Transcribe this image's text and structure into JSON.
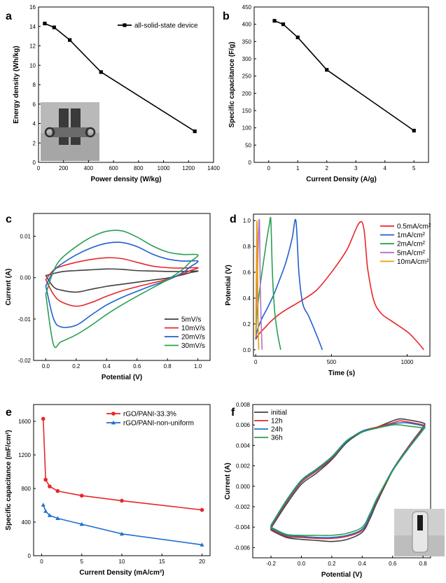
{
  "chart_data": [
    {
      "id": "a",
      "panel_label": "a",
      "type": "line",
      "xlabel": "Power density (W/kg)",
      "ylabel": "Energy density (Wh/kg)",
      "xlim": [
        0,
        1400
      ],
      "ylim": [
        0,
        16
      ],
      "xticks": [
        0,
        200,
        400,
        600,
        800,
        1000,
        1200,
        1400
      ],
      "yticks": [
        0,
        2,
        4,
        6,
        8,
        10,
        12,
        14,
        16
      ],
      "legend_position": "top-right",
      "inset": "photo of all-solid-state device",
      "series": [
        {
          "name": "all-solid-state device",
          "color": "#000000",
          "marker": "square",
          "x": [
            50,
            125,
            250,
            500,
            1250
          ],
          "y": [
            14.3,
            13.9,
            12.6,
            9.3,
            3.2
          ]
        }
      ]
    },
    {
      "id": "b",
      "panel_label": "b",
      "type": "line",
      "xlabel": "Current Density (A/g)",
      "ylabel": "Specific capacitance (F/g)",
      "xlim": [
        -0.5,
        5.5
      ],
      "ylim": [
        0,
        450
      ],
      "xticks": [
        0,
        1,
        2,
        3,
        4,
        5
      ],
      "yticks": [
        0,
        50,
        100,
        150,
        200,
        250,
        300,
        350,
        400,
        450
      ],
      "series": [
        {
          "name": "",
          "color": "#000000",
          "marker": "square",
          "x": [
            0.2,
            0.5,
            1,
            2,
            5
          ],
          "y": [
            410,
            400,
            362,
            268,
            92
          ]
        }
      ]
    },
    {
      "id": "c",
      "panel_label": "c",
      "type": "line",
      "curve": "cv",
      "xlabel": "Potential (V)",
      "ylabel": "Current (A)",
      "xlim": [
        -0.08,
        1.08
      ],
      "ylim": [
        -0.02,
        0.0155
      ],
      "xticks": [
        0.0,
        0.2,
        0.4,
        0.6,
        0.8,
        1.0
      ],
      "yticks": [
        -0.02,
        -0.01,
        0.0,
        0.01
      ],
      "legend_position": "bottom-right",
      "series": [
        {
          "name": "5mV/s",
          "color": "#404040",
          "x": [
            0.0,
            0.1,
            0.2,
            0.3,
            0.4,
            0.5,
            0.6,
            0.7,
            0.8,
            0.9,
            1.0,
            0.95,
            0.9,
            0.8,
            0.7,
            0.6,
            0.5,
            0.4,
            0.3,
            0.2,
            0.1,
            0.05,
            0.0
          ],
          "y": [
            0.0005,
            0.0014,
            0.0017,
            0.0019,
            0.0021,
            0.002,
            0.0017,
            0.0016,
            0.0015,
            0.0015,
            0.0016,
            0.0012,
            0.0007,
            -0.0001,
            -0.0006,
            -0.0011,
            -0.0016,
            -0.0021,
            -0.0028,
            -0.0035,
            -0.003,
            -0.0022,
            0.0005
          ]
        },
        {
          "name": "10mV/s",
          "color": "#e8262a",
          "x": [
            0.0,
            0.05,
            0.1,
            0.2,
            0.3,
            0.4,
            0.5,
            0.6,
            0.7,
            0.8,
            0.9,
            1.0,
            0.95,
            0.9,
            0.8,
            0.7,
            0.6,
            0.5,
            0.4,
            0.3,
            0.2,
            0.1,
            0.05,
            0.0
          ],
          "y": [
            -0.0005,
            0.0018,
            0.0027,
            0.0037,
            0.0044,
            0.0048,
            0.0046,
            0.0037,
            0.0028,
            0.0024,
            0.0023,
            0.0024,
            0.0017,
            0.0009,
            -0.0004,
            -0.0013,
            -0.0022,
            -0.0032,
            -0.0045,
            -0.006,
            -0.0069,
            -0.0058,
            -0.004,
            -0.0005
          ]
        },
        {
          "name": "20mV/s",
          "color": "#1f5fd0",
          "x": [
            0.0,
            0.05,
            0.1,
            0.2,
            0.3,
            0.4,
            0.5,
            0.6,
            0.7,
            0.8,
            0.9,
            1.0,
            0.95,
            0.9,
            0.8,
            0.7,
            0.6,
            0.5,
            0.4,
            0.3,
            0.2,
            0.1,
            0.05,
            0.0
          ],
          "y": [
            -0.002,
            0.0015,
            0.0032,
            0.0055,
            0.0072,
            0.0083,
            0.0085,
            0.0075,
            0.0057,
            0.0045,
            0.004,
            0.004,
            0.0026,
            0.0012,
            -0.0006,
            -0.0019,
            -0.0033,
            -0.0048,
            -0.0066,
            -0.009,
            -0.0115,
            -0.0119,
            -0.0098,
            -0.002
          ]
        },
        {
          "name": "30mV/s",
          "color": "#2aa050",
          "x": [
            0.0,
            0.05,
            0.1,
            0.2,
            0.3,
            0.4,
            0.5,
            0.6,
            0.7,
            0.8,
            0.9,
            1.0,
            0.95,
            0.9,
            0.8,
            0.7,
            0.6,
            0.5,
            0.4,
            0.3,
            0.2,
            0.1,
            0.05,
            0.0
          ],
          "y": [
            -0.004,
            0.0015,
            0.0045,
            0.0075,
            0.0098,
            0.0112,
            0.0113,
            0.0098,
            0.0077,
            0.0062,
            0.0056,
            0.0055,
            0.0038,
            0.002,
            -0.0005,
            -0.0025,
            -0.0045,
            -0.0066,
            -0.0089,
            -0.0115,
            -0.0138,
            -0.0155,
            -0.0161,
            -0.004
          ]
        }
      ]
    },
    {
      "id": "d",
      "panel_label": "d",
      "type": "line",
      "xlabel": "Time (s)",
      "ylabel": "Potential (V)",
      "xlim": [
        -15,
        1150
      ],
      "ylim": [
        -0.05,
        1.05
      ],
      "xticks": [
        0,
        500,
        1000
      ],
      "yticks": [
        0.0,
        0.2,
        0.4,
        0.6,
        0.8,
        1.0
      ],
      "legend_position": "top-right",
      "series": [
        {
          "name": "0.5mA/cm²",
          "color": "#e8262a",
          "x": [
            0,
            20,
            60,
            100,
            150,
            200,
            300,
            400,
            500,
            600,
            700,
            740,
            780,
            830,
            900,
            1000,
            1060,
            1110
          ],
          "y": [
            0.08,
            0.12,
            0.17,
            0.22,
            0.27,
            0.31,
            0.38,
            0.46,
            0.6,
            0.77,
            0.99,
            0.62,
            0.38,
            0.28,
            0.22,
            0.14,
            0.07,
            0.0
          ]
        },
        {
          "name": "1mA/cm²",
          "color": "#1f5fd0",
          "x": [
            0,
            10,
            40,
            80,
            120,
            160,
            200,
            240,
            265,
            285,
            310,
            350,
            400,
            440
          ],
          "y": [
            0.08,
            0.15,
            0.24,
            0.33,
            0.43,
            0.55,
            0.68,
            0.86,
            1.0,
            0.6,
            0.36,
            0.26,
            0.12,
            0.0
          ]
        },
        {
          "name": "2mA/cm²",
          "color": "#2aa050",
          "x": [
            0,
            10,
            30,
            50,
            70,
            90,
            100,
            110,
            125,
            145,
            165
          ],
          "y": [
            0.1,
            0.3,
            0.5,
            0.67,
            0.83,
            0.97,
            1.0,
            0.6,
            0.3,
            0.12,
            0.0
          ]
        },
        {
          "name": "5mA/cm²",
          "color": "#b36fd0",
          "x": [
            0,
            8,
            16,
            24,
            30,
            36,
            42
          ],
          "y": [
            0.1,
            0.45,
            0.8,
            1.0,
            0.5,
            0.2,
            0.0
          ]
        },
        {
          "name": "10mA/cm²",
          "color": "#e8a000",
          "x": [
            0,
            4,
            8,
            12,
            16,
            20
          ],
          "y": [
            0.1,
            0.6,
            1.0,
            0.6,
            0.2,
            0.0
          ]
        }
      ]
    },
    {
      "id": "e",
      "panel_label": "e",
      "type": "line",
      "xlabel": "Current Density (mA/cm²)",
      "ylabel": "Specific capacitance (mF/cm²)",
      "xlim": [
        -1,
        21
      ],
      "ylim": [
        0,
        1800
      ],
      "xticks": [
        0,
        5,
        10,
        15,
        20
      ],
      "yticks": [
        0,
        400,
        800,
        1200,
        1600
      ],
      "legend_position": "top-right",
      "series": [
        {
          "name": "rGO/PANI-33.3%",
          "color": "#e8262a",
          "marker": "circle",
          "x": [
            0.2,
            0.5,
            1,
            2,
            5,
            10,
            20
          ],
          "y": [
            1630,
            905,
            825,
            770,
            715,
            655,
            545
          ]
        },
        {
          "name": "rGO/PANI-non-uniform",
          "color": "#1f6fd0",
          "marker": "triangle",
          "x": [
            0.2,
            0.5,
            1,
            2,
            5,
            10,
            20
          ],
          "y": [
            605,
            530,
            480,
            445,
            375,
            260,
            130
          ]
        }
      ]
    },
    {
      "id": "f",
      "panel_label": "f",
      "type": "line",
      "curve": "cv",
      "xlabel": "Potential (V)",
      "ylabel": "Current (A)",
      "xlim": [
        -0.32,
        0.85
      ],
      "ylim": [
        -0.007,
        0.008
      ],
      "xticks": [
        -0.2,
        0.0,
        0.2,
        0.4,
        0.6,
        0.8
      ],
      "yticks": [
        -0.006,
        -0.004,
        -0.002,
        0.0,
        0.002,
        0.004,
        0.006,
        0.008
      ],
      "legend_position": "top-left",
      "inset": "photo of device in vial",
      "series": [
        {
          "name": "initial",
          "color": "#404040",
          "x": [
            -0.2,
            -0.1,
            0.0,
            0.1,
            0.2,
            0.3,
            0.4,
            0.5,
            0.6,
            0.65,
            0.7,
            0.8,
            0.8,
            0.7,
            0.6,
            0.5,
            0.45,
            0.4,
            0.3,
            0.2,
            0.1,
            0.0,
            -0.1,
            -0.2
          ],
          "y": [
            -0.0041,
            -0.0018,
            0.0002,
            0.0013,
            0.0026,
            0.0043,
            0.0053,
            0.0058,
            0.0064,
            0.0066,
            0.0065,
            0.0062,
            0.0058,
            0.0038,
            0.0015,
            -0.0015,
            -0.0032,
            -0.0045,
            -0.0052,
            -0.0054,
            -0.0053,
            -0.0052,
            -0.005,
            -0.0043
          ]
        },
        {
          "name": "12h",
          "color": "#e8262a",
          "x": [
            -0.2,
            -0.1,
            0.0,
            0.1,
            0.2,
            0.3,
            0.4,
            0.5,
            0.6,
            0.65,
            0.7,
            0.8,
            0.8,
            0.7,
            0.6,
            0.5,
            0.45,
            0.4,
            0.3,
            0.2,
            0.1,
            0.0,
            -0.1,
            -0.2
          ],
          "y": [
            -0.004,
            -0.0016,
            0.0004,
            0.0015,
            0.0027,
            0.0044,
            0.0054,
            0.0058,
            0.0062,
            0.0064,
            0.0063,
            0.006,
            0.0057,
            0.0038,
            0.0016,
            -0.0013,
            -0.003,
            -0.0043,
            -0.0049,
            -0.0051,
            -0.0051,
            -0.005,
            -0.0049,
            -0.0042
          ]
        },
        {
          "name": "24h",
          "color": "#1f6fd0",
          "x": [
            -0.2,
            -0.1,
            0.0,
            0.1,
            0.2,
            0.3,
            0.4,
            0.5,
            0.6,
            0.65,
            0.7,
            0.8,
            0.8,
            0.7,
            0.6,
            0.5,
            0.45,
            0.4,
            0.3,
            0.2,
            0.1,
            0.0,
            -0.1,
            -0.2
          ],
          "y": [
            -0.0039,
            -0.0015,
            0.0005,
            0.0016,
            0.0028,
            0.0044,
            0.0054,
            0.0057,
            0.0061,
            0.0062,
            0.0062,
            0.0059,
            0.0056,
            0.0037,
            0.0016,
            -0.0012,
            -0.0029,
            -0.0042,
            -0.0048,
            -0.005,
            -0.005,
            -0.0049,
            -0.0048,
            -0.0041
          ]
        },
        {
          "name": "36h",
          "color": "#2aa050",
          "x": [
            -0.2,
            -0.1,
            0.0,
            0.1,
            0.2,
            0.3,
            0.4,
            0.5,
            0.6,
            0.65,
            0.7,
            0.8,
            0.8,
            0.7,
            0.6,
            0.5,
            0.45,
            0.4,
            0.3,
            0.2,
            0.1,
            0.0,
            -0.1,
            -0.2
          ],
          "y": [
            -0.0038,
            -0.0014,
            0.0006,
            0.0017,
            0.0029,
            0.0045,
            0.0053,
            0.0057,
            0.006,
            0.006,
            0.0059,
            0.0057,
            0.0055,
            0.0036,
            0.0015,
            -0.0011,
            -0.0027,
            -0.004,
            -0.0046,
            -0.0048,
            -0.0048,
            -0.0048,
            -0.0047,
            -0.004
          ]
        }
      ]
    }
  ]
}
